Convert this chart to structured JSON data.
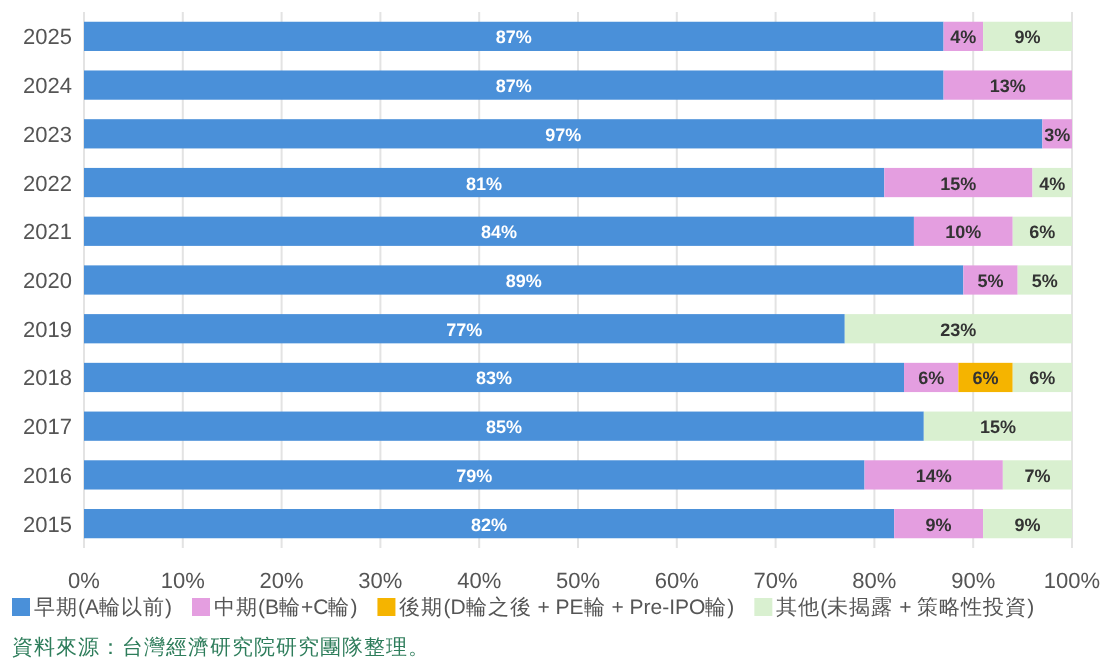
{
  "chart_data": {
    "type": "bar",
    "orientation": "horizontal",
    "stacked": true,
    "categories": [
      "2025",
      "2024",
      "2023",
      "2022",
      "2021",
      "2020",
      "2019",
      "2018",
      "2017",
      "2016",
      "2015"
    ],
    "series": [
      {
        "name": "早期(A輪以前)",
        "color": "#4a90d9",
        "values": [
          87,
          87,
          97,
          81,
          84,
          89,
          77,
          83,
          85,
          79,
          82
        ],
        "value_labels": [
          "87%",
          "87%",
          "97%",
          "81%",
          "84%",
          "89%",
          "77%",
          "83%",
          "85%",
          "79%",
          "82%"
        ]
      },
      {
        "name": "中期(B輪+C輪)",
        "color": "#e49ee0",
        "values": [
          4,
          13,
          3,
          15,
          10,
          5.5,
          null,
          5.5,
          null,
          14,
          9
        ],
        "value_labels": [
          "4%",
          "13%",
          "3%",
          "15%",
          "10%",
          "5%",
          null,
          "6%",
          null,
          "14%",
          "9%"
        ]
      },
      {
        "name": "後期(D輪之後 + PE輪 + Pre-IPO輪)",
        "color": "#f5b400",
        "values": [
          null,
          null,
          null,
          null,
          null,
          null,
          null,
          5.5,
          null,
          null,
          null
        ],
        "value_labels": [
          null,
          null,
          null,
          null,
          null,
          null,
          null,
          "6%",
          null,
          null,
          null
        ]
      },
      {
        "name": "其他(未揭露 + 策略性投資)",
        "color": "#d9f0d0",
        "values": [
          9,
          null,
          null,
          4,
          6,
          5.5,
          23,
          6,
          15,
          7,
          9
        ],
        "value_labels": [
          "9%",
          null,
          null,
          "4%",
          "6%",
          "5%",
          "23%",
          "6%",
          "15%",
          "7%",
          "9%"
        ]
      }
    ],
    "xlim": [
      0,
      100
    ],
    "xticks": [
      {
        "value": 0,
        "label": "0%"
      },
      {
        "value": 10,
        "label": "10%"
      },
      {
        "value": 20,
        "label": "20%"
      },
      {
        "value": 30,
        "label": "30%"
      },
      {
        "value": 40,
        "label": "40%"
      },
      {
        "value": 50,
        "label": "50%"
      },
      {
        "value": 60,
        "label": "60%"
      },
      {
        "value": 70,
        "label": "70%"
      },
      {
        "value": 80,
        "label": "80%"
      },
      {
        "value": 90,
        "label": "90%"
      },
      {
        "value": 100,
        "label": "100%"
      }
    ],
    "grid": "x",
    "legend": "bottom",
    "annotations": [
      "資料來源：台灣經濟研究院研究團隊整理。"
    ]
  }
}
